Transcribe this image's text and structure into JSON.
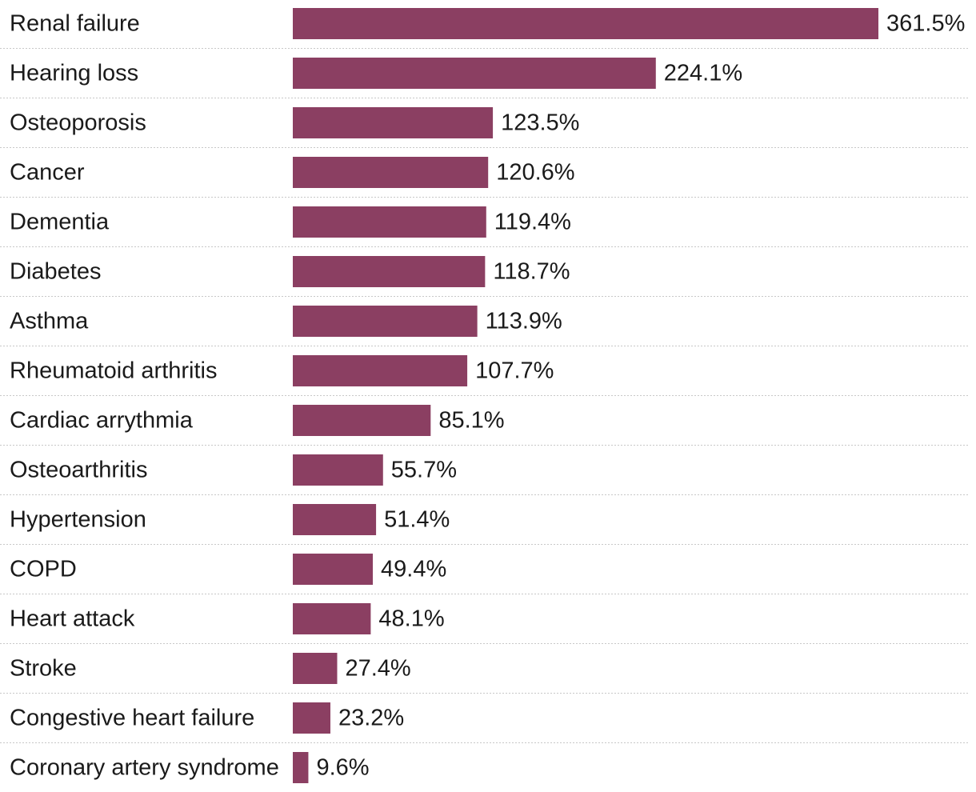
{
  "chart_data": {
    "type": "bar",
    "orientation": "horizontal",
    "categories": [
      "Renal failure",
      "Hearing loss",
      "Osteoporosis",
      "Cancer",
      "Dementia",
      "Diabetes",
      "Asthma",
      "Rheumatoid arthritis",
      "Cardiac arrythmia",
      "Osteoarthritis",
      "Hypertension",
      "COPD",
      "Heart attack",
      "Stroke",
      "Congestive heart failure",
      "Coronary artery syndrome"
    ],
    "values": [
      361.5,
      224.1,
      123.5,
      120.6,
      119.4,
      118.7,
      113.9,
      107.7,
      85.1,
      55.7,
      51.4,
      49.4,
      48.1,
      27.4,
      23.2,
      9.6
    ],
    "value_labels": [
      "361.5%",
      "224.1%",
      "123.5%",
      "120.6%",
      "119.4%",
      "118.7%",
      "113.9%",
      "107.7%",
      "85.1%",
      "55.7%",
      "51.4%",
      "49.4%",
      "48.1%",
      "27.4%",
      "23.2%",
      "9.6%"
    ],
    "unit": "%",
    "xlim": [
      0,
      361.5
    ],
    "grid": false,
    "bar_color": "#8b3f62",
    "title": "",
    "xlabel": "",
    "ylabel": ""
  }
}
